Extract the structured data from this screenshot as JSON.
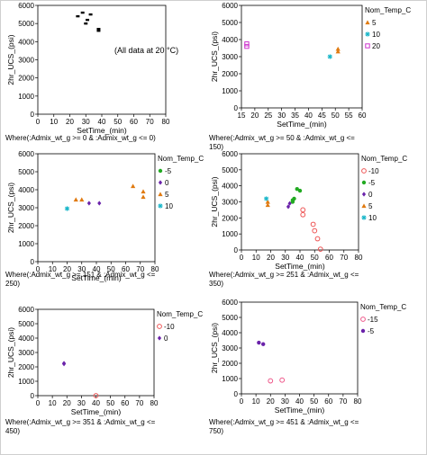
{
  "chart_data": [
    {
      "type": "scatter",
      "xlabel": "SetTime_(min)",
      "ylabel": "2hr_UCS_(psi)",
      "xlim": [
        0,
        80
      ],
      "ylim": [
        0,
        6000
      ],
      "xticks": [
        "0",
        "10",
        "20",
        "30",
        "40",
        "50",
        "60",
        "70",
        "80"
      ],
      "yticks": [
        "0",
        "1000",
        "2000",
        "3000",
        "4000",
        "5000",
        "6000"
      ],
      "legend_title": "",
      "annotation": "(All data at 20 °C)",
      "where": "Where(:Admix_wt_g >= 0 & :Admix_wt_g <= 0)",
      "series": [
        {
          "name": "",
          "color": "#000000",
          "marker": "dash",
          "points": [
            [
              25,
              5400
            ],
            [
              28,
              5600
            ],
            [
              30,
              5000
            ],
            [
              31,
              5200
            ],
            [
              33,
              5500
            ],
            [
              38,
              4700
            ],
            [
              38,
              4600
            ]
          ]
        }
      ]
    },
    {
      "type": "scatter",
      "xlabel": "SetTime_(min)",
      "ylabel": "2hr_UCS_(psi)",
      "xlim": [
        15,
        60
      ],
      "ylim": [
        0,
        6000
      ],
      "xticks": [
        "15",
        "20",
        "25",
        "30",
        "35",
        "40",
        "45",
        "50",
        "55",
        "60"
      ],
      "yticks": [
        "0",
        "1000",
        "2000",
        "3000",
        "4000",
        "5000",
        "6000"
      ],
      "legend_title": "Nom_Temp_C",
      "legend_labels": [
        "5",
        "10",
        "20"
      ],
      "where": "Where(:Admix_wt_g >= 50 & :Admix_wt_g <=\n150)",
      "series": [
        {
          "name": "5",
          "color": "#e07a10",
          "marker": "triangle",
          "points": [
            [
              51,
              3450
            ],
            [
              51,
              3300
            ]
          ]
        },
        {
          "name": "10",
          "color": "#19b6c9",
          "marker": "star",
          "points": [
            [
              48,
              3000
            ]
          ]
        },
        {
          "name": "20",
          "color": "#cc33cc",
          "marker": "square",
          "points": [
            [
              17,
              3750
            ],
            [
              17,
              3600
            ]
          ]
        }
      ]
    },
    {
      "type": "scatter",
      "xlabel": "SetTime_(min)",
      "ylabel": "2hr_UCS_(psi)",
      "xlim": [
        0,
        80
      ],
      "ylim": [
        0,
        6000
      ],
      "xticks": [
        "0",
        "10",
        "20",
        "30",
        "40",
        "50",
        "60",
        "70",
        "80"
      ],
      "yticks": [
        "0",
        "1000",
        "2000",
        "3000",
        "4000",
        "5000",
        "6000"
      ],
      "legend_title": "Nom_Temp_C",
      "legend_labels": [
        "-5",
        "0",
        "5",
        "10"
      ],
      "where": "Where(:Admix_wt_g >= 151 & :Admix_wt_g <=\n250)",
      "series": [
        {
          "name": "-5",
          "color": "#22aa22",
          "marker": "circle",
          "points": []
        },
        {
          "name": "0",
          "color": "#6a22aa",
          "marker": "diamond",
          "points": [
            [
              35,
              3250
            ],
            [
              42,
              3250
            ]
          ]
        },
        {
          "name": "5",
          "color": "#e07a10",
          "marker": "triangle",
          "points": [
            [
              26,
              3450
            ],
            [
              30,
              3450
            ],
            [
              65,
              4200
            ],
            [
              72,
              3900
            ],
            [
              72,
              3600
            ]
          ]
        },
        {
          "name": "10",
          "color": "#19b6c9",
          "marker": "star",
          "points": [
            [
              20,
              2950
            ]
          ]
        }
      ]
    },
    {
      "type": "scatter",
      "xlabel": "SetTime_(min)",
      "ylabel": "2hr_UCS_(psi)",
      "xlim": [
        0,
        80
      ],
      "ylim": [
        0,
        6000
      ],
      "xticks": [
        "0",
        "10",
        "20",
        "30",
        "40",
        "50",
        "60",
        "70",
        "80"
      ],
      "yticks": [
        "0",
        "1000",
        "2000",
        "3000",
        "4000",
        "5000",
        "6000"
      ],
      "legend_title": "Nom_Temp_C",
      "legend_labels": [
        "-10",
        "-5",
        "0",
        "5",
        "10"
      ],
      "where": "Where(:Admix_wt_g >= 251 & :Admix_wt_g <=\n350)",
      "series": [
        {
          "name": "-10",
          "color": "#ee5555",
          "marker": "ring",
          "points": [
            [
              42,
              2500
            ],
            [
              42,
              2200
            ],
            [
              49,
              1600
            ],
            [
              50,
              1200
            ],
            [
              52,
              700
            ],
            [
              54,
              50
            ]
          ]
        },
        {
          "name": "-5",
          "color": "#22aa22",
          "marker": "circle",
          "points": [
            [
              35,
              3100
            ],
            [
              35,
              3000
            ],
            [
              36,
              3200
            ],
            [
              38,
              3800
            ],
            [
              40,
              3700
            ]
          ]
        },
        {
          "name": "0",
          "color": "#6a22aa",
          "marker": "diamond",
          "points": [
            [
              32,
              2700
            ],
            [
              33,
              2900
            ]
          ]
        },
        {
          "name": "5",
          "color": "#e07a10",
          "marker": "triangle",
          "points": [
            [
              18,
              3000
            ],
            [
              18,
              2800
            ]
          ]
        },
        {
          "name": "10",
          "color": "#19b6c9",
          "marker": "star",
          "points": [
            [
              17,
              3200
            ]
          ]
        }
      ]
    },
    {
      "type": "scatter",
      "xlabel": "SetTime_(min)",
      "ylabel": "2hr_UCS_(psi)",
      "xlim": [
        0,
        80
      ],
      "ylim": [
        0,
        6000
      ],
      "xticks": [
        "0",
        "10",
        "20",
        "30",
        "40",
        "50",
        "60",
        "70",
        "80"
      ],
      "yticks": [
        "0",
        "1000",
        "2000",
        "3000",
        "4000",
        "5000",
        "6000"
      ],
      "legend_title": "Nom_Temp_C",
      "legend_labels": [
        "-10",
        "0"
      ],
      "where": "Where(:Admix_wt_g >= 351 & :Admix_wt_g <=\n450)",
      "series": [
        {
          "name": "-10",
          "color": "#ee5555",
          "marker": "ring",
          "points": [
            [
              40,
              0
            ]
          ]
        },
        {
          "name": "0",
          "color": "#6a22aa",
          "marker": "diamond",
          "points": [
            [
              18,
              2250
            ],
            [
              18,
              2200
            ]
          ]
        }
      ]
    },
    {
      "type": "scatter",
      "xlabel": "SetTime_(min)",
      "ylabel": "2hr_UCS_(psi)",
      "xlim": [
        0,
        80
      ],
      "ylim": [
        0,
        6000
      ],
      "xticks": [
        "0",
        "10",
        "20",
        "30",
        "40",
        "50",
        "60",
        "70",
        "80"
      ],
      "yticks": [
        "0",
        "1000",
        "2000",
        "3000",
        "4000",
        "5000",
        "6000"
      ],
      "legend_title": "Nom_Temp_C",
      "legend_labels": [
        "-15",
        "-5"
      ],
      "where": "Where(:Admix_wt_g >= 451 & :Admix_wt_g <=\n750)",
      "series": [
        {
          "name": "-15",
          "color": "#ee5588",
          "marker": "ring",
          "points": [
            [
              20,
              850
            ],
            [
              28,
              900
            ]
          ]
        },
        {
          "name": "-5",
          "color": "#6a22aa",
          "marker": "circle",
          "points": [
            [
              12,
              3350
            ],
            [
              15,
              3250
            ]
          ]
        }
      ]
    }
  ]
}
